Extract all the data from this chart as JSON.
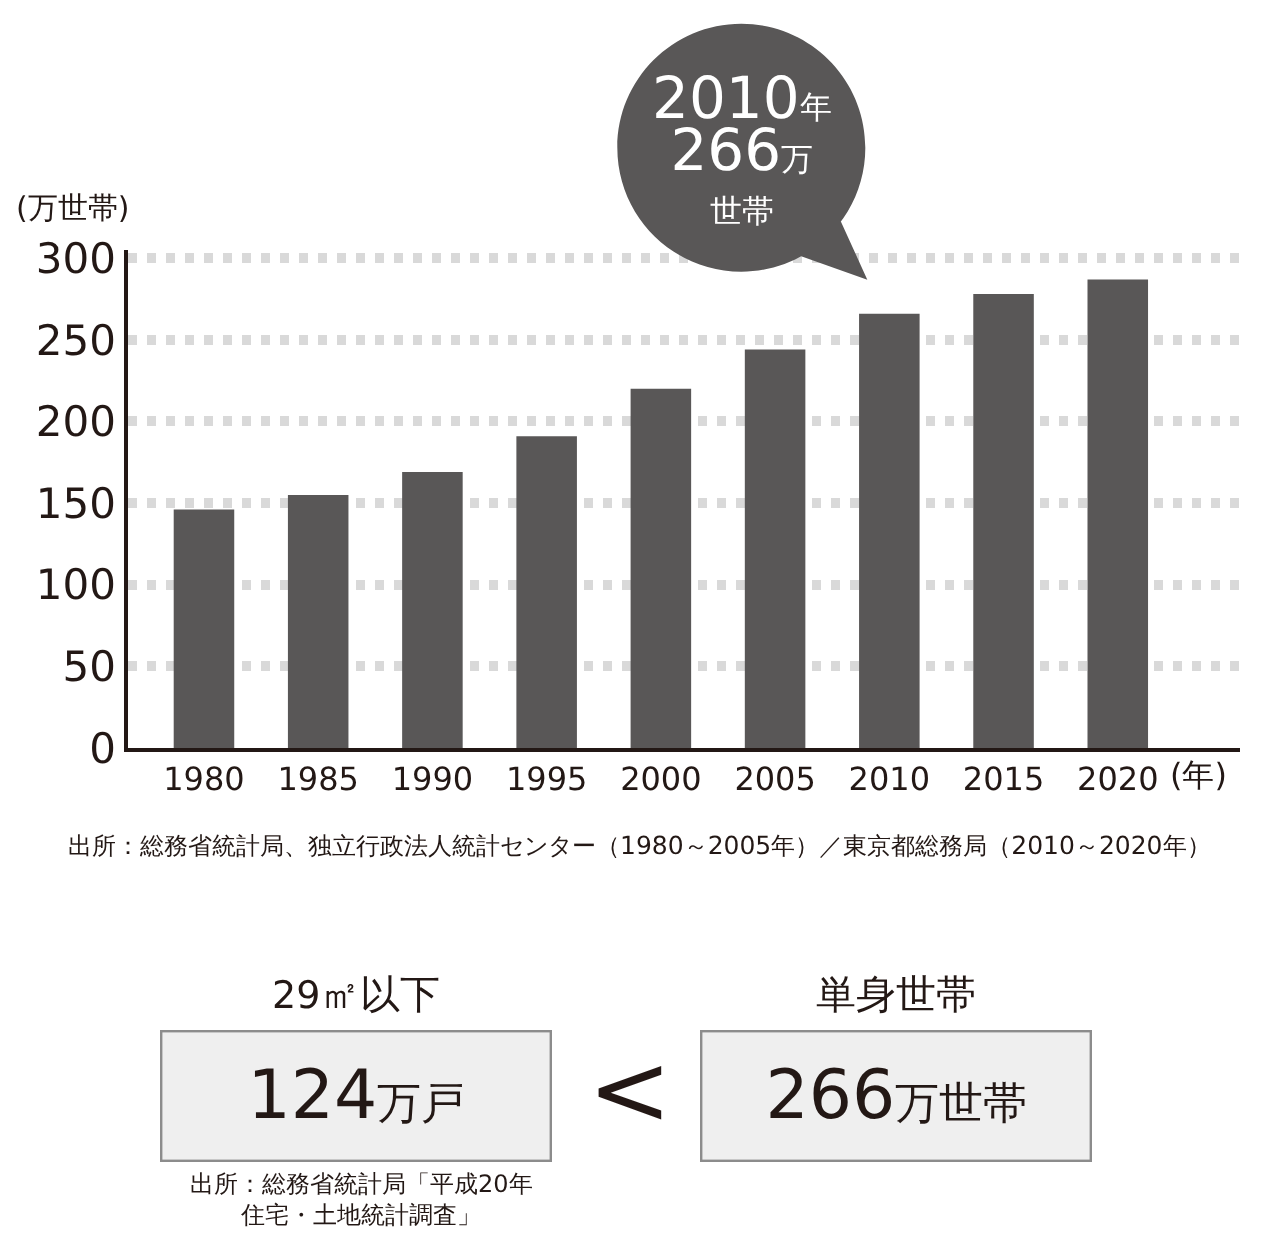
{
  "chart_data": {
    "type": "bar",
    "categories": [
      "1980",
      "1985",
      "1990",
      "1995",
      "2000",
      "2005",
      "2010",
      "2015",
      "2020"
    ],
    "values": [
      146,
      155,
      169,
      191,
      220,
      244,
      266,
      278,
      287
    ],
    "color": "#595757",
    "xlabel": "(年)",
    "ylabel": "(万世帯)",
    "ylim": [
      0,
      305
    ],
    "yticks": [
      0,
      50,
      100,
      150,
      200,
      250,
      300
    ],
    "grid": "y",
    "annotations": [
      {
        "text": "2010年266万世帯",
        "x": "2010",
        "y": 266
      },
      "出所：総務省統計局、独立行政法人統計センター（1980～2005年）／東京都総務局（2010～2020年）",
      "29㎡以下",
      "124万戸",
      "<",
      "単身世帯",
      "266万世帯",
      "出所：総務省統計局「平成20年住宅・土地統計調査」"
    ]
  }
}
